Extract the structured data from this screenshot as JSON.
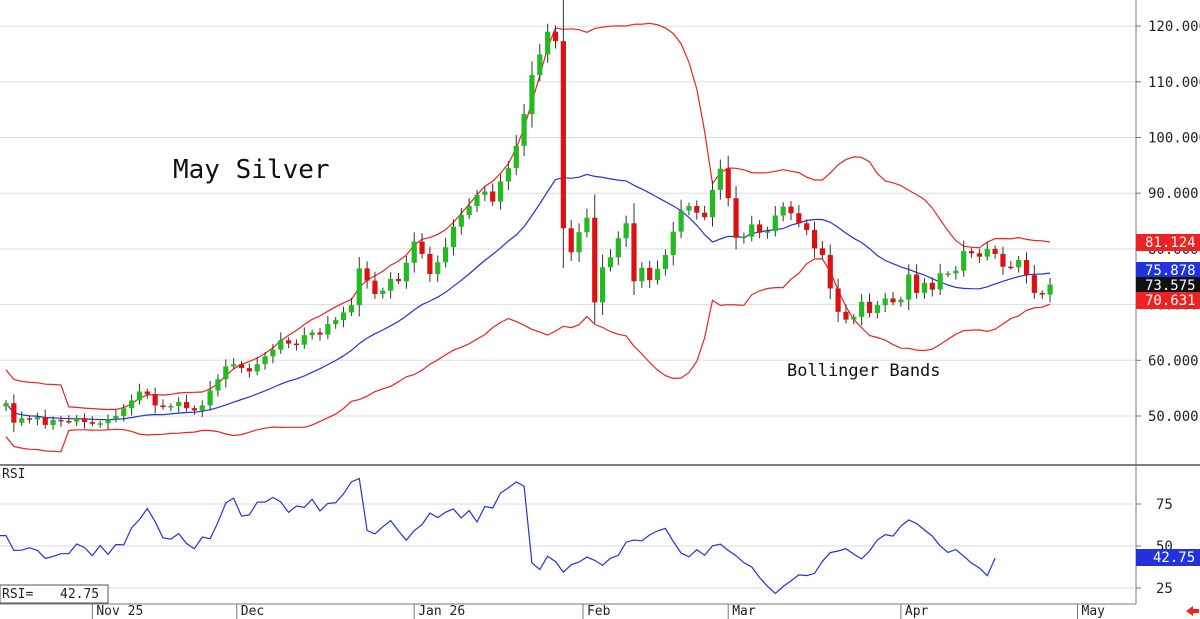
{
  "chart_data": [
    {
      "type": "candlestick",
      "title": "May Silver",
      "annotation": "Bollinger Bands",
      "y_axis": {
        "range": [
          42,
          123
        ],
        "ticks": [
          50,
          60,
          70,
          80,
          90,
          100,
          110,
          120
        ],
        "tick_labels": [
          "50.000",
          "60.000",
          "70.000",
          "80.000",
          "90.000",
          "100.000",
          "110.000",
          "120.000"
        ]
      },
      "x_axis": {
        "labels": [
          "Nov 25",
          "Dec",
          "Jan 26",
          "Feb",
          "Mar",
          "Apr",
          "May"
        ]
      },
      "last_close": 73.575,
      "last_close_label": "73.575",
      "upper_band": 81.124,
      "upper_band_label": "81.124",
      "middle_band": 75.878,
      "middle_band_label": "75.878",
      "lower_band": 70.631,
      "lower_band_label": "70.631",
      "colors": {
        "up": "#22bb22",
        "down": "#dd1111",
        "bands": "#ee2222",
        "middle": "#2233dd",
        "last": "#111111"
      },
      "close": [
        52.3,
        48.8,
        49.6,
        49.4,
        49.8,
        48.4,
        49.3,
        49.1,
        49.0,
        49.6,
        48.9,
        48.6,
        48.7,
        49.4,
        50.0,
        51.4,
        52.8,
        54.4,
        53.9,
        51.9,
        51.6,
        51.8,
        52.5,
        51.4,
        51.0,
        51.9,
        54.6,
        56.6,
        58.9,
        59.3,
        58.6,
        58.0,
        59.3,
        60.7,
        61.9,
        63.6,
        63.0,
        62.8,
        64.5,
        65.0,
        64.6,
        66.5,
        67.2,
        68.6,
        69.9,
        76.5,
        74.3,
        71.9,
        72.5,
        74.6,
        74.2,
        77.5,
        81.3,
        79.1,
        75.5,
        77.6,
        80.3,
        84.0,
        86.1,
        87.7,
        89.7,
        90.3,
        88.5,
        92.1,
        94.5,
        98.5,
        104.2,
        111.2,
        114.9,
        119.0,
        117.3,
        83.7,
        79.4,
        83.0,
        85.6,
        70.4,
        76.7,
        78.5,
        81.9,
        84.6,
        74.2,
        76.6,
        74.4,
        76.4,
        78.9,
        83.1,
        86.9,
        87.7,
        86.5,
        85.7,
        90.6,
        94.4,
        89.1,
        82.0,
        82.2,
        84.4,
        82.9,
        83.2,
        86.0,
        87.6,
        86.4,
        84.6,
        83.4,
        80.1,
        78.9,
        72.9,
        68.7,
        67.3,
        67.8,
        70.5,
        68.5,
        69.9,
        71.1,
        70.4,
        70.9,
        75.4,
        72.1,
        73.9,
        72.7,
        75.6,
        75.6,
        76.1,
        79.6,
        79.2,
        78.6,
        80.0,
        79.1,
        76.8,
        76.7,
        78.0,
        75.3,
        72.1,
        71.8,
        73.6
      ],
      "rsi": {
        "label": "RSI",
        "readout_label": "RSI=",
        "last": 42.75,
        "last_label": "42.75",
        "range": [
          18,
          95
        ],
        "ticks": [
          25,
          50,
          75
        ],
        "tick_labels": [
          "25",
          "50",
          "75"
        ],
        "color": "#2233dd",
        "values": [
          56.2,
          47.4,
          47.5,
          49.0,
          47.4,
          42.6,
          43.8,
          45.4,
          45.5,
          51.2,
          49.1,
          44.2,
          50.3,
          45.0,
          50.9,
          50.7,
          60.8,
          65.7,
          72.3,
          64.4,
          54.9,
          54.1,
          57.4,
          51.5,
          48.4,
          55.3,
          54.3,
          64.0,
          75.6,
          78.5,
          67.8,
          68.5,
          76.1,
          76.2,
          78.9,
          76.2,
          70.0,
          73.8,
          73.0,
          77.8,
          70.9,
          75.3,
          75.8,
          81.1,
          88.2,
          90.1,
          59.2,
          57.2,
          61.4,
          65.1,
          59.0,
          53.4,
          59.2,
          62.7,
          69.6,
          66.9,
          70.1,
          72.0,
          66.7,
          71.1,
          64.3,
          73.5,
          72.7,
          81.5,
          84.7,
          88.1,
          85.6,
          40.0,
          36.1,
          43.9,
          40.7,
          34.4,
          38.8,
          40.4,
          43.4,
          41.4,
          38.5,
          42.7,
          44.4,
          52.3,
          53.5,
          53.1,
          56.6,
          59.0,
          60.5,
          52.7,
          45.8,
          43.6,
          47.8,
          44.5,
          50.1,
          51.1,
          47.4,
          44.2,
          40.0,
          37.5,
          31.2,
          26.1,
          21.7,
          25.9,
          29.2,
          32.8,
          32.4,
          33.7,
          40.9,
          46.1,
          47.0,
          48.4,
          45.2,
          42.3,
          47.0,
          53.6,
          56.8,
          55.9,
          61.9,
          65.5,
          63.4,
          59.6,
          55.9,
          50.1,
          46.2,
          47.9,
          44.0,
          39.8,
          36.9,
          32.3,
          42.8
        ]
      }
    }
  ]
}
